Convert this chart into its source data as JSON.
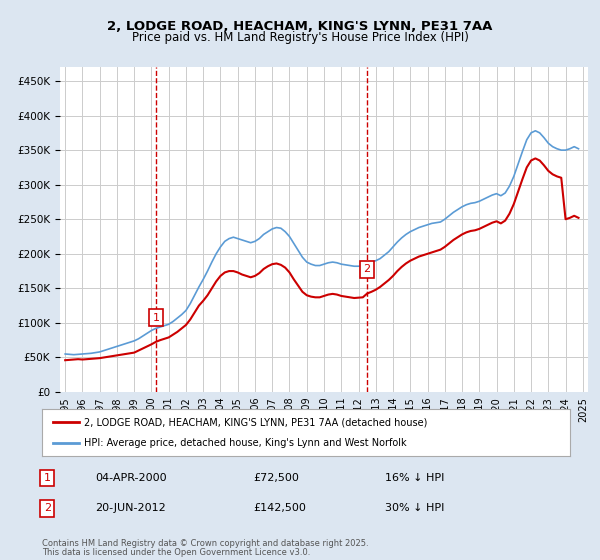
{
  "title_line1": "2, LODGE ROAD, HEACHAM, KING'S LYNN, PE31 7AA",
  "title_line2": "Price paid vs. HM Land Registry's House Price Index (HPI)",
  "ylabel_ticks": [
    "£0",
    "£50K",
    "£100K",
    "£150K",
    "£200K",
    "£250K",
    "£300K",
    "£350K",
    "£400K",
    "£450K"
  ],
  "ytick_values": [
    0,
    50000,
    100000,
    150000,
    200000,
    250000,
    300000,
    350000,
    400000,
    450000
  ],
  "ylim": [
    0,
    470000
  ],
  "legend_entry1": "2, LODGE ROAD, HEACHAM, KING'S LYNN, PE31 7AA (detached house)",
  "legend_entry2": "HPI: Average price, detached house, King's Lynn and West Norfolk",
  "marker1_label": "1",
  "marker1_date": "04-APR-2000",
  "marker1_price": "£72,500",
  "marker1_hpi": "16% ↓ HPI",
  "marker1_x_year": 2000.27,
  "marker1_y": 72500,
  "marker2_label": "2",
  "marker2_date": "20-JUN-2012",
  "marker2_price": "£142,500",
  "marker2_hpi": "30% ↓ HPI",
  "marker2_x_year": 2012.47,
  "marker2_y": 142500,
  "footer_line1": "Contains HM Land Registry data © Crown copyright and database right 2025.",
  "footer_line2": "This data is licensed under the Open Government Licence v3.0.",
  "red_color": "#cc0000",
  "blue_color": "#5b9bd5",
  "background_color": "#dce6f1",
  "plot_bg_color": "#ffffff",
  "marker_box_color": "#cc0000",
  "vline_color": "#cc0000",
  "grid_color": "#cccccc",
  "hpi_data_x": [
    1995.0,
    1995.25,
    1995.5,
    1995.75,
    1996.0,
    1996.25,
    1996.5,
    1996.75,
    1997.0,
    1997.25,
    1997.5,
    1997.75,
    1998.0,
    1998.25,
    1998.5,
    1998.75,
    1999.0,
    1999.25,
    1999.5,
    1999.75,
    2000.0,
    2000.25,
    2000.5,
    2000.75,
    2001.0,
    2001.25,
    2001.5,
    2001.75,
    2002.0,
    2002.25,
    2002.5,
    2002.75,
    2003.0,
    2003.25,
    2003.5,
    2003.75,
    2004.0,
    2004.25,
    2004.5,
    2004.75,
    2005.0,
    2005.25,
    2005.5,
    2005.75,
    2006.0,
    2006.25,
    2006.5,
    2006.75,
    2007.0,
    2007.25,
    2007.5,
    2007.75,
    2008.0,
    2008.25,
    2008.5,
    2008.75,
    2009.0,
    2009.25,
    2009.5,
    2009.75,
    2010.0,
    2010.25,
    2010.5,
    2010.75,
    2011.0,
    2011.25,
    2011.5,
    2011.75,
    2012.0,
    2012.25,
    2012.5,
    2012.75,
    2013.0,
    2013.25,
    2013.5,
    2013.75,
    2014.0,
    2014.25,
    2014.5,
    2014.75,
    2015.0,
    2015.25,
    2015.5,
    2015.75,
    2016.0,
    2016.25,
    2016.5,
    2016.75,
    2017.0,
    2017.25,
    2017.5,
    2017.75,
    2018.0,
    2018.25,
    2018.5,
    2018.75,
    2019.0,
    2019.25,
    2019.5,
    2019.75,
    2020.0,
    2020.25,
    2020.5,
    2020.75,
    2021.0,
    2021.25,
    2021.5,
    2021.75,
    2022.0,
    2022.25,
    2022.5,
    2022.75,
    2023.0,
    2023.25,
    2023.5,
    2023.75,
    2024.0,
    2024.25,
    2024.5,
    2024.75
  ],
  "hpi_data_y": [
    55000,
    54500,
    54000,
    54500,
    55000,
    55500,
    56000,
    57000,
    58000,
    60000,
    62000,
    64000,
    66000,
    68000,
    70000,
    72000,
    74000,
    77000,
    81000,
    85000,
    89000,
    92000,
    94000,
    96000,
    98000,
    102000,
    107000,
    112000,
    118000,
    128000,
    140000,
    152000,
    163000,
    175000,
    188000,
    200000,
    210000,
    218000,
    222000,
    224000,
    222000,
    220000,
    218000,
    216000,
    218000,
    222000,
    228000,
    232000,
    236000,
    238000,
    237000,
    232000,
    225000,
    215000,
    205000,
    195000,
    188000,
    185000,
    183000,
    183000,
    185000,
    187000,
    188000,
    187000,
    185000,
    184000,
    183000,
    182000,
    182000,
    183000,
    185000,
    188000,
    190000,
    193000,
    198000,
    203000,
    210000,
    217000,
    223000,
    228000,
    232000,
    235000,
    238000,
    240000,
    242000,
    244000,
    245000,
    246000,
    250000,
    255000,
    260000,
    264000,
    268000,
    271000,
    273000,
    274000,
    276000,
    279000,
    282000,
    285000,
    287000,
    284000,
    288000,
    298000,
    312000,
    330000,
    348000,
    365000,
    375000,
    378000,
    375000,
    368000,
    360000,
    355000,
    352000,
    350000,
    350000,
    352000,
    355000,
    352000
  ],
  "price_data_x": [
    1995.0,
    1995.25,
    1995.5,
    1995.75,
    1996.0,
    1996.25,
    1996.5,
    1996.75,
    1997.0,
    1997.25,
    1997.5,
    1997.75,
    1998.0,
    1998.25,
    1998.5,
    1998.75,
    1999.0,
    1999.25,
    1999.5,
    1999.75,
    2000.0,
    2000.25,
    2000.5,
    2000.75,
    2001.0,
    2001.25,
    2001.5,
    2001.75,
    2002.0,
    2002.25,
    2002.5,
    2002.75,
    2003.0,
    2003.25,
    2003.5,
    2003.75,
    2004.0,
    2004.25,
    2004.5,
    2004.75,
    2005.0,
    2005.25,
    2005.5,
    2005.75,
    2006.0,
    2006.25,
    2006.5,
    2006.75,
    2007.0,
    2007.25,
    2007.5,
    2007.75,
    2008.0,
    2008.25,
    2008.5,
    2008.75,
    2009.0,
    2009.25,
    2009.5,
    2009.75,
    2010.0,
    2010.25,
    2010.5,
    2010.75,
    2011.0,
    2011.25,
    2011.5,
    2011.75,
    2012.0,
    2012.25,
    2012.5,
    2012.75,
    2013.0,
    2013.25,
    2013.5,
    2013.75,
    2014.0,
    2014.25,
    2014.5,
    2014.75,
    2015.0,
    2015.25,
    2015.5,
    2015.75,
    2016.0,
    2016.25,
    2016.5,
    2016.75,
    2017.0,
    2017.25,
    2017.5,
    2017.75,
    2018.0,
    2018.25,
    2018.5,
    2018.75,
    2019.0,
    2019.25,
    2019.5,
    2019.75,
    2020.0,
    2020.25,
    2020.5,
    2020.75,
    2021.0,
    2021.25,
    2021.5,
    2021.75,
    2022.0,
    2022.25,
    2022.5,
    2022.75,
    2023.0,
    2023.25,
    2023.5,
    2023.75,
    2024.0,
    2024.25,
    2024.5,
    2024.75
  ],
  "price_data_y": [
    46000,
    46500,
    47000,
    47500,
    47000,
    47500,
    48000,
    48500,
    49000,
    50000,
    51000,
    52000,
    53000,
    54000,
    55000,
    56000,
    57000,
    60000,
    63000,
    66000,
    69000,
    72500,
    75000,
    77000,
    79000,
    83000,
    87000,
    92000,
    97000,
    105000,
    115000,
    125000,
    132000,
    140000,
    150000,
    160000,
    168000,
    173000,
    175000,
    175000,
    173000,
    170000,
    168000,
    166000,
    168000,
    172000,
    178000,
    182000,
    185000,
    186000,
    184000,
    180000,
    173000,
    163000,
    154000,
    145000,
    140000,
    138000,
    137000,
    137000,
    139000,
    141000,
    142000,
    141000,
    139000,
    138000,
    137000,
    136000,
    136500,
    137000,
    142500,
    145000,
    148000,
    152000,
    157000,
    162000,
    168000,
    175000,
    181000,
    186000,
    190000,
    193000,
    196000,
    198000,
    200000,
    202000,
    204000,
    206000,
    210000,
    215000,
    220000,
    224000,
    228000,
    231000,
    233000,
    234000,
    236000,
    239000,
    242000,
    245000,
    247000,
    244000,
    248000,
    258000,
    272000,
    290000,
    308000,
    325000,
    335000,
    338000,
    335000,
    328000,
    320000,
    315000,
    312000,
    310000,
    250000,
    252000,
    255000,
    252000
  ],
  "xtick_years": [
    1995,
    1996,
    1997,
    1998,
    1999,
    2000,
    2001,
    2002,
    2003,
    2004,
    2005,
    2006,
    2007,
    2008,
    2009,
    2010,
    2011,
    2012,
    2013,
    2014,
    2015,
    2016,
    2017,
    2018,
    2019,
    2020,
    2021,
    2022,
    2023,
    2024,
    2025
  ],
  "xlim_left": 1994.7,
  "xlim_right": 2025.3
}
